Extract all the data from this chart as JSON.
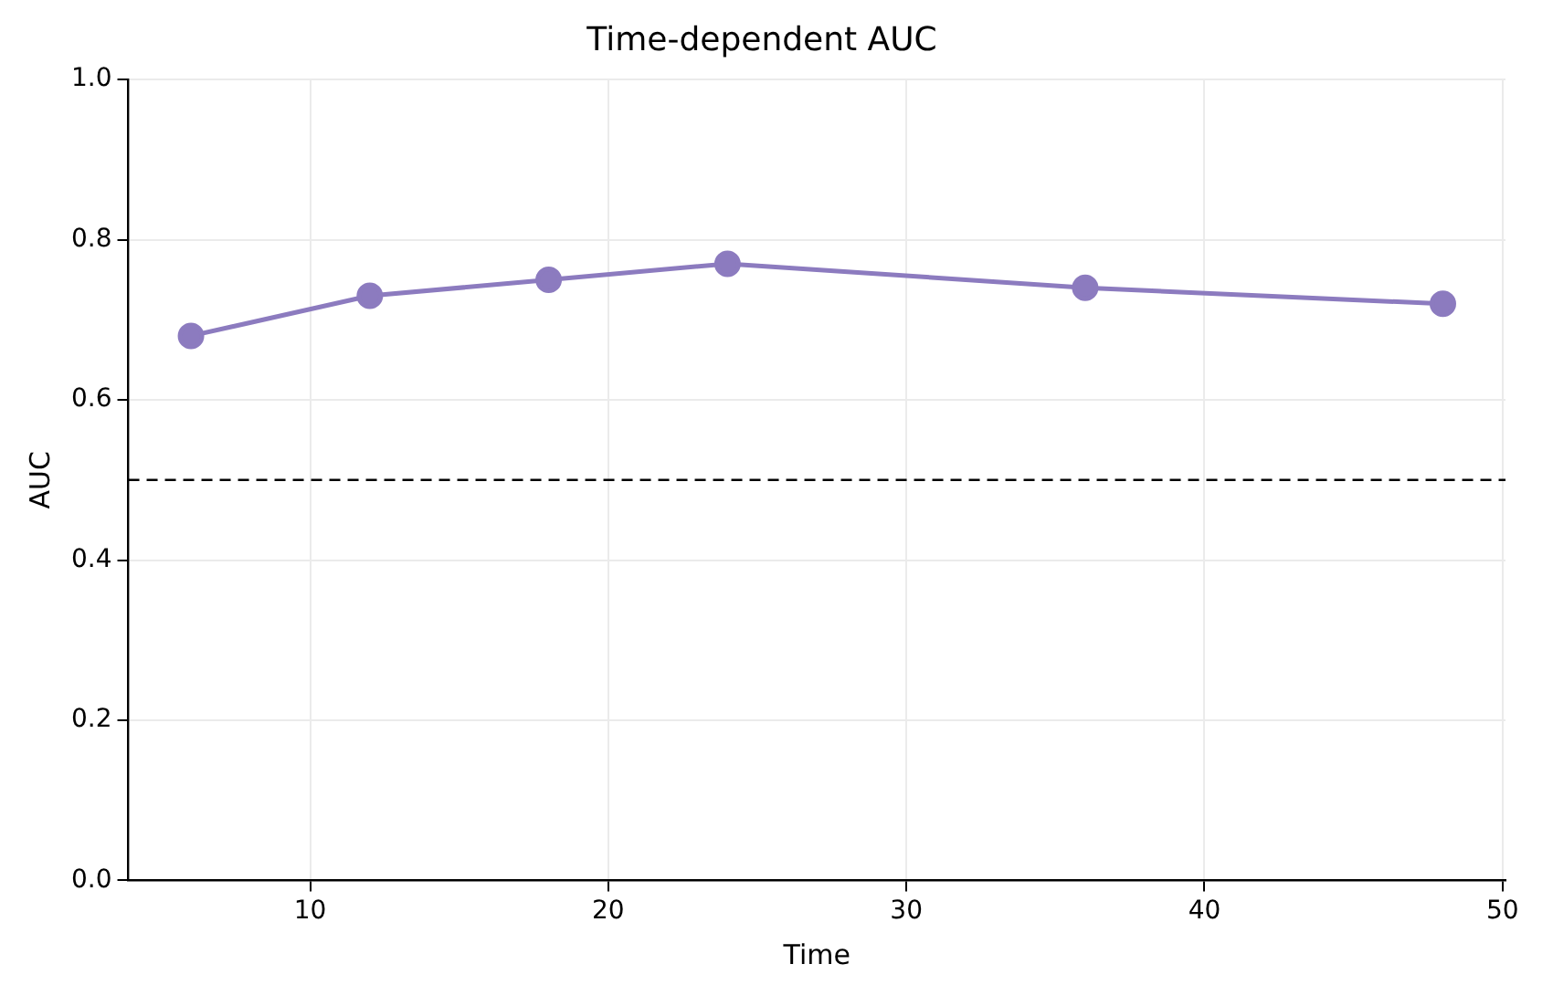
{
  "chart_data": {
    "type": "line",
    "title": "Time-dependent AUC",
    "xlabel": "Time",
    "ylabel": "AUC",
    "x": [
      6,
      12,
      18,
      24,
      36,
      48
    ],
    "series": [
      {
        "color": "#8c7bbf",
        "values": [
          0.68,
          0.73,
          0.75,
          0.77,
          0.74,
          0.72
        ]
      }
    ],
    "xlim": [
      3.9,
      50.1
    ],
    "xticks": [
      10,
      20,
      30,
      40,
      50
    ],
    "ylim": [
      0,
      1
    ],
    "yticks": [
      {
        "value": 0,
        "label": "0.0"
      },
      {
        "value": 0.2,
        "label": "0.2"
      },
      {
        "value": 0.4,
        "label": "0.4"
      },
      {
        "value": 0.6,
        "label": "0.6"
      },
      {
        "value": 0.8,
        "label": "0.8"
      },
      {
        "value": 1,
        "label": "1.0"
      }
    ],
    "ref_lines": [
      {
        "axis": "y",
        "value": 0.5,
        "color": "#000000",
        "line_style": "dashed"
      }
    ],
    "grid": true,
    "legend": false,
    "marker": "circle",
    "line_style": "solid"
  }
}
